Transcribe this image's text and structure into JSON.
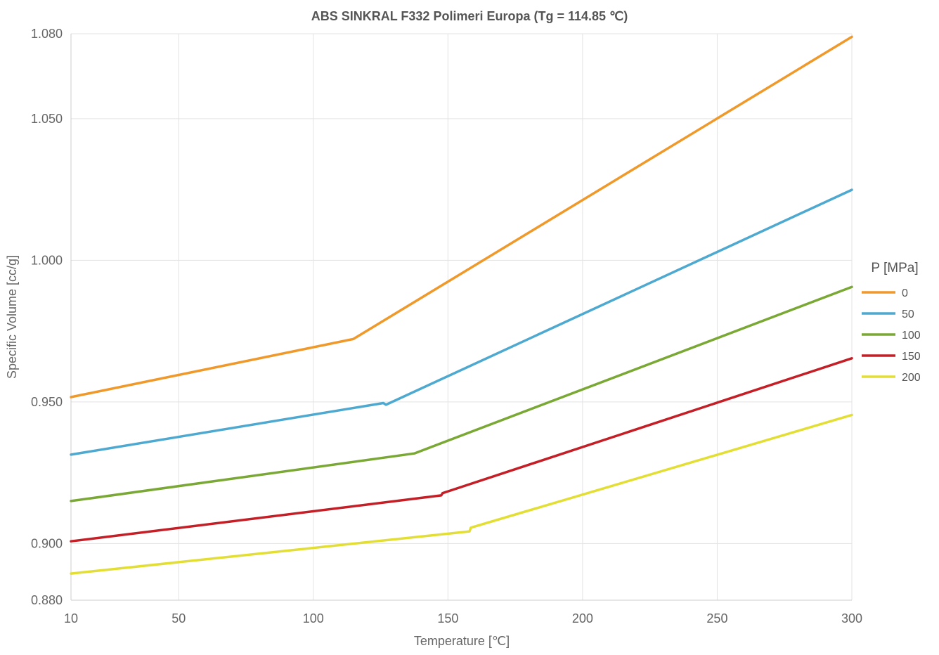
{
  "chart_data": {
    "type": "line",
    "title": "ABS SINKRAL F332 Polimeri Europa (Tg = 114.85 ℃)",
    "xlabel": "Temperature [℃]",
    "ylabel": "Specific Volume [cc/g]",
    "xlim": [
      10,
      300
    ],
    "ylim": [
      0.88,
      1.08
    ],
    "xticks": [
      10,
      50,
      100,
      150,
      200,
      250,
      300
    ],
    "yticks": [
      0.88,
      0.9,
      0.95,
      1.0,
      1.05,
      1.08
    ],
    "xtick_labels": [
      "10",
      "50",
      "100",
      "150",
      "200",
      "250",
      "300"
    ],
    "ytick_labels": [
      "0.880",
      "0.900",
      "0.950",
      "1.000",
      "1.050",
      "1.080"
    ],
    "grid": true,
    "legend": {
      "title": "P [MPa]",
      "position": "right"
    },
    "series": [
      {
        "name": "0",
        "color": "#f0992b",
        "points": [
          [
            10,
            0.9517
          ],
          [
            114.85,
            0.9722
          ],
          [
            300,
            1.0789
          ]
        ]
      },
      {
        "name": "50",
        "color": "#4ea9d1",
        "points": [
          [
            10,
            0.9314
          ],
          [
            126,
            0.9496
          ],
          [
            127,
            0.949
          ],
          [
            300,
            1.0249
          ]
        ]
      },
      {
        "name": "100",
        "color": "#7aa834",
        "points": [
          [
            10,
            0.915
          ],
          [
            137.5,
            0.9318
          ],
          [
            300,
            0.9906
          ]
        ]
      },
      {
        "name": "150",
        "color": "#c41e26",
        "points": [
          [
            10,
            0.9008
          ],
          [
            147.5,
            0.917
          ],
          [
            148,
            0.9178
          ],
          [
            300,
            0.9654
          ]
        ]
      },
      {
        "name": "200",
        "color": "#e3de33",
        "points": [
          [
            10,
            0.8894
          ],
          [
            158,
            0.9043
          ],
          [
            158.5,
            0.9056
          ],
          [
            300,
            0.9454
          ]
        ]
      }
    ]
  }
}
